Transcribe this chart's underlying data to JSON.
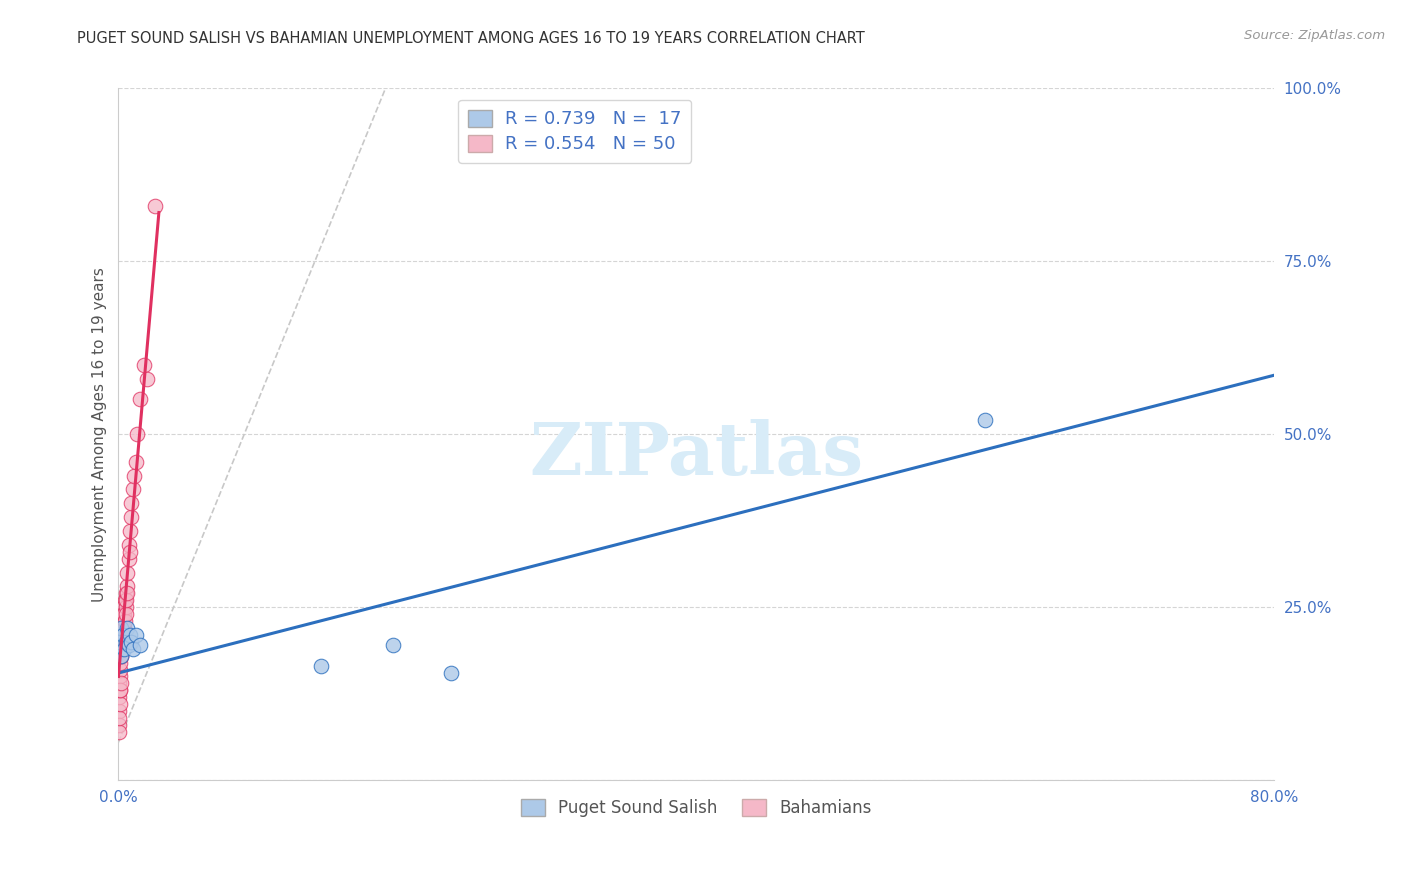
{
  "title": "PUGET SOUND SALISH VS BAHAMIAN UNEMPLOYMENT AMONG AGES 16 TO 19 YEARS CORRELATION CHART",
  "source": "Source: ZipAtlas.com",
  "ylabel": "Unemployment Among Ages 16 to 19 years",
  "xlim": [
    0.0,
    0.8
  ],
  "ylim": [
    0.0,
    1.0
  ],
  "xticks": [
    0.0,
    0.2,
    0.4,
    0.6,
    0.8
  ],
  "yticks": [
    0.0,
    0.25,
    0.5,
    0.75,
    1.0
  ],
  "xticklabels": [
    "0.0%",
    "",
    "",
    "",
    "80.0%"
  ],
  "yticklabels": [
    "",
    "25.0%",
    "50.0%",
    "75.0%",
    "100.0%"
  ],
  "legend_r1": "R = 0.739",
  "legend_n1": "N =  17",
  "legend_r2": "R = 0.554",
  "legend_n2": "N = 50",
  "group1_color": "#adc9e8",
  "group2_color": "#f5b8c8",
  "line1_color": "#2c6fbe",
  "line2_color": "#e03060",
  "dash_color": "#c8c8c8",
  "watermark_color": "#d8ecf8",
  "title_color": "#333333",
  "source_color": "#999999",
  "axis_label_color": "#555555",
  "tick_color": "#4472c4",
  "grid_color": "#d5d5d5",
  "puget_x": [
    0.001,
    0.002,
    0.002,
    0.003,
    0.004,
    0.005,
    0.006,
    0.007,
    0.008,
    0.009,
    0.01,
    0.012,
    0.015,
    0.14,
    0.19,
    0.23,
    0.6
  ],
  "puget_y": [
    0.2,
    0.22,
    0.18,
    0.21,
    0.19,
    0.2,
    0.22,
    0.195,
    0.21,
    0.2,
    0.19,
    0.21,
    0.195,
    0.165,
    0.195,
    0.155,
    0.52
  ],
  "bah_x": [
    0.0002,
    0.0003,
    0.0004,
    0.0005,
    0.0006,
    0.0007,
    0.0008,
    0.0009,
    0.001,
    0.001,
    0.0012,
    0.0013,
    0.0015,
    0.0016,
    0.0018,
    0.002,
    0.002,
    0.0022,
    0.0023,
    0.0025,
    0.003,
    0.003,
    0.003,
    0.0032,
    0.0034,
    0.004,
    0.004,
    0.0042,
    0.0045,
    0.005,
    0.005,
    0.005,
    0.0055,
    0.006,
    0.006,
    0.006,
    0.007,
    0.007,
    0.008,
    0.008,
    0.009,
    0.009,
    0.01,
    0.011,
    0.012,
    0.013,
    0.015,
    0.018,
    0.02,
    0.025
  ],
  "bah_y": [
    0.1,
    0.08,
    0.07,
    0.12,
    0.09,
    0.14,
    0.11,
    0.13,
    0.15,
    0.13,
    0.16,
    0.17,
    0.18,
    0.14,
    0.19,
    0.2,
    0.18,
    0.21,
    0.19,
    0.22,
    0.2,
    0.22,
    0.25,
    0.23,
    0.24,
    0.22,
    0.24,
    0.26,
    0.23,
    0.25,
    0.27,
    0.24,
    0.26,
    0.28,
    0.3,
    0.27,
    0.32,
    0.34,
    0.33,
    0.36,
    0.38,
    0.4,
    0.42,
    0.44,
    0.46,
    0.5,
    0.55,
    0.6,
    0.58,
    0.83
  ],
  "blue_line_x": [
    0.0,
    0.8
  ],
  "blue_line_y": [
    0.155,
    0.585
  ],
  "pink_line_x": [
    0.0,
    0.028
  ],
  "pink_line_y": [
    0.15,
    0.82
  ],
  "dash_line_x": [
    0.0,
    0.185
  ],
  "dash_line_y": [
    0.055,
    1.0
  ]
}
